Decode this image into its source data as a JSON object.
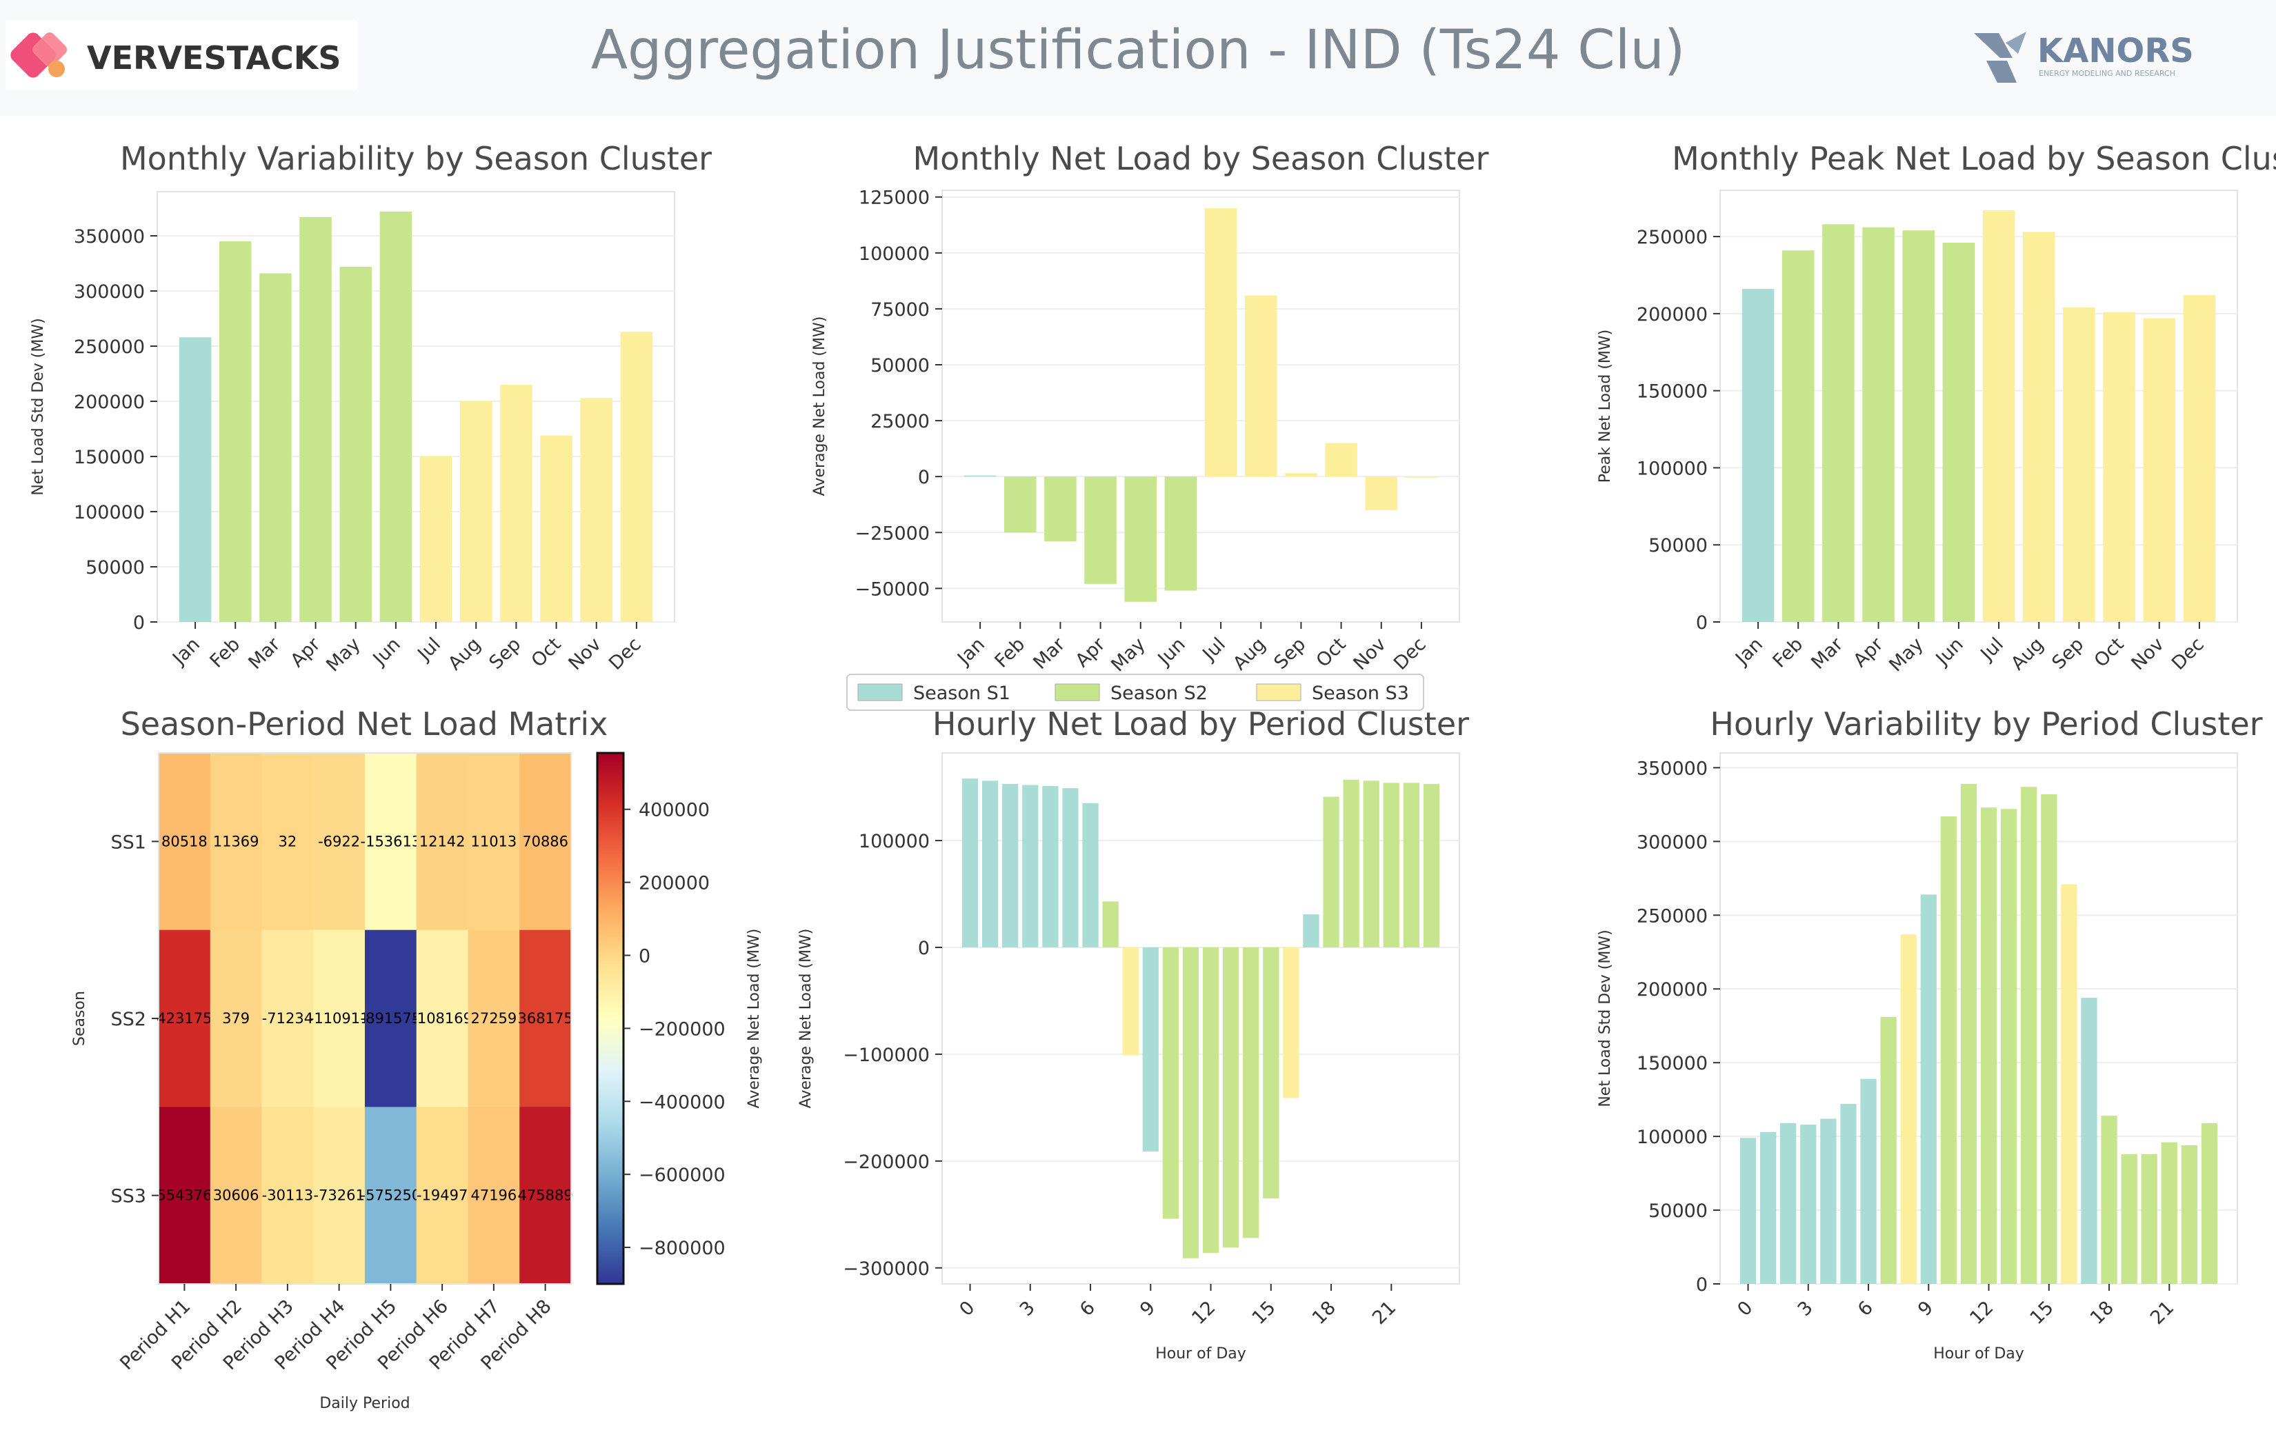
{
  "header": {
    "title": "Aggregation Justification - IND (Ts24 Clu)",
    "brand_left": "VERVESTACKS",
    "brand_right": "KANORS",
    "brand_right_tagline": "ENERGY MODELING AND RESEARCH"
  },
  "colors": {
    "S1": "#a9dcd4",
    "S2": "#c7e58c",
    "S3": "#fdee9b",
    "title_gray": "#7f8890"
  },
  "legend": {
    "items": [
      {
        "label": "Season S1",
        "color_key": "S1"
      },
      {
        "label": "Season S2",
        "color_key": "S2"
      },
      {
        "label": "Season S3",
        "color_key": "S3"
      }
    ]
  },
  "chart_data": [
    {
      "id": "monthly-variability",
      "type": "bar",
      "title": "Monthly Variability by Season Cluster",
      "xlabel": "",
      "ylabel": "Net Load Std Dev (MW)",
      "categories": [
        "Jan",
        "Feb",
        "Mar",
        "Apr",
        "May",
        "Jun",
        "Jul",
        "Aug",
        "Sep",
        "Oct",
        "Nov",
        "Dec"
      ],
      "values": [
        258000,
        345000,
        316000,
        367000,
        322000,
        372000,
        150000,
        200000,
        215000,
        169000,
        203000,
        263000
      ],
      "season": [
        "S1",
        "S2",
        "S2",
        "S2",
        "S2",
        "S2",
        "S3",
        "S3",
        "S3",
        "S3",
        "S3",
        "S3"
      ],
      "ylim": [
        0,
        390000
      ],
      "yticks": [
        0,
        50000,
        100000,
        150000,
        200000,
        250000,
        300000,
        350000
      ],
      "grid": true
    },
    {
      "id": "monthly-net-load",
      "type": "bar",
      "title": "Monthly Net Load by Season Cluster",
      "xlabel": "",
      "ylabel": "Average Net Load (MW)",
      "categories": [
        "Jan",
        "Feb",
        "Mar",
        "Apr",
        "May",
        "Jun",
        "Jul",
        "Aug",
        "Sep",
        "Oct",
        "Nov",
        "Dec"
      ],
      "values": [
        500,
        -25000,
        -29000,
        -48000,
        -56000,
        -51000,
        120000,
        81000,
        1500,
        15000,
        -15000,
        -500
      ],
      "season": [
        "S1",
        "S2",
        "S2",
        "S2",
        "S2",
        "S2",
        "S3",
        "S3",
        "S3",
        "S3",
        "S3",
        "S3"
      ],
      "ylim": [
        -65000,
        128000
      ],
      "yticks": [
        -50000,
        -25000,
        0,
        25000,
        50000,
        75000,
        100000,
        125000
      ],
      "grid": true
    },
    {
      "id": "monthly-peak",
      "type": "bar",
      "title": "Monthly Peak Net Load by Season Clust",
      "xlabel": "",
      "ylabel": "Peak Net Load (MW)",
      "categories": [
        "Jan",
        "Feb",
        "Mar",
        "Apr",
        "May",
        "Jun",
        "Jul",
        "Aug",
        "Sep",
        "Oct",
        "Nov",
        "Dec"
      ],
      "values": [
        216000,
        241000,
        258000,
        256000,
        254000,
        246000,
        267000,
        253000,
        204000,
        201000,
        197000,
        212000
      ],
      "season": [
        "S1",
        "S2",
        "S2",
        "S2",
        "S2",
        "S2",
        "S3",
        "S3",
        "S3",
        "S3",
        "S3",
        "S3"
      ],
      "ylim": [
        0,
        280000
      ],
      "yticks": [
        0,
        50000,
        100000,
        150000,
        200000,
        250000
      ],
      "grid": true
    },
    {
      "id": "season-period-matrix",
      "type": "heatmap",
      "title": "Season-Period Net Load Matrix",
      "xlabel": "Daily Period",
      "ylabel": "Season",
      "colorbar_label": "Average Net Load (MW)",
      "columns": [
        "Period H1",
        "Period H2",
        "Period H3",
        "Period H4",
        "Period H5",
        "Period H6",
        "Period H7",
        "Period H8"
      ],
      "rows": [
        "SS1",
        "SS2",
        "SS3"
      ],
      "values": [
        [
          80518,
          11369,
          32,
          -6922,
          -153613,
          12142,
          11013,
          70886
        ],
        [
          423175,
          379,
          -71234,
          -110911,
          -891575,
          -108169,
          27259,
          368175
        ],
        [
          554376,
          30606,
          -30113,
          -73261,
          -575250,
          -19497,
          47196,
          475889
        ]
      ],
      "value_labels": [
        [
          "80518",
          "11369",
          "32",
          "-6922",
          "-153613",
          "12142",
          "11013",
          "70886"
        ],
        [
          "423175",
          "379",
          "-71234",
          "-110911",
          "-891575",
          "-108169",
          "27259",
          "368175"
        ],
        [
          "554376",
          "30606",
          "-30113",
          "-73261",
          "-575250",
          "-19497",
          "47196",
          "475889"
        ]
      ],
      "colorbar_range": [
        -900000,
        554376
      ],
      "colorbar_ticks": [
        400000,
        200000,
        0,
        -200000,
        -400000,
        -600000,
        -800000
      ],
      "colorbar_tick_labels": [
        "400000",
        "200000",
        "0",
        "−200000",
        "−400000",
        "−600000",
        "−800000"
      ],
      "colormap": "RdYlBu_r"
    },
    {
      "id": "hourly-net-load",
      "type": "bar",
      "title": "Hourly Net Load by Period Cluster",
      "xlabel": "Hour of Day",
      "ylabel": "Average Net Load (MW)",
      "categories": [
        0,
        1,
        2,
        3,
        4,
        5,
        6,
        7,
        8,
        9,
        10,
        11,
        12,
        13,
        14,
        15,
        16,
        17,
        18,
        19,
        20,
        21,
        22,
        23
      ],
      "values": [
        158000,
        156000,
        153000,
        152000,
        151000,
        149000,
        135000,
        43000,
        -101000,
        -191000,
        -254000,
        -291000,
        -286000,
        -281000,
        -272000,
        -235000,
        -141000,
        31000,
        141000,
        157000,
        156000,
        154000,
        154000,
        153000
      ],
      "season": [
        "S1",
        "S1",
        "S1",
        "S1",
        "S1",
        "S1",
        "S1",
        "S2",
        "S3",
        "S1",
        "S2",
        "S2",
        "S2",
        "S2",
        "S2",
        "S2",
        "S3",
        "S1",
        "S2",
        "S2",
        "S2",
        "S2",
        "S2",
        "S2"
      ],
      "ylim": [
        -315000,
        182000
      ],
      "yticks": [
        -300000,
        -200000,
        -100000,
        0,
        100000
      ],
      "xticks": [
        0,
        3,
        6,
        9,
        12,
        15,
        18,
        21
      ],
      "grid": true
    },
    {
      "id": "hourly-variability",
      "type": "bar",
      "title": "Hourly Variability by Period Cluster",
      "xlabel": "Hour of Day",
      "ylabel": "Net Load Std Dev (MW)",
      "categories": [
        0,
        1,
        2,
        3,
        4,
        5,
        6,
        7,
        8,
        9,
        10,
        11,
        12,
        13,
        14,
        15,
        16,
        17,
        18,
        19,
        20,
        21,
        22,
        23
      ],
      "values": [
        99000,
        103000,
        109000,
        108000,
        112000,
        122000,
        139000,
        181000,
        237000,
        264000,
        317000,
        339000,
        323000,
        322000,
        337000,
        332000,
        271000,
        194000,
        114000,
        88000,
        88000,
        96000,
        94000,
        109000
      ],
      "season": [
        "S1",
        "S1",
        "S1",
        "S1",
        "S1",
        "S1",
        "S1",
        "S2",
        "S3",
        "S1",
        "S2",
        "S2",
        "S2",
        "S2",
        "S2",
        "S2",
        "S3",
        "S1",
        "S2",
        "S2",
        "S2",
        "S2",
        "S2",
        "S2"
      ],
      "ylim": [
        0,
        360000
      ],
      "yticks": [
        0,
        50000,
        100000,
        150000,
        200000,
        250000,
        300000,
        350000
      ],
      "xticks": [
        0,
        3,
        6,
        9,
        12,
        15,
        18,
        21
      ],
      "grid": true
    }
  ]
}
